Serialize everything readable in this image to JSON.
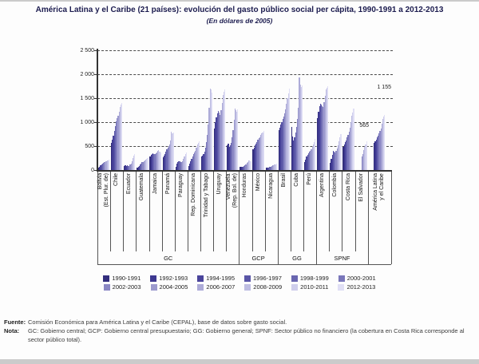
{
  "title": "América Latina y el Caribe (21 países): evolución del gasto público social per cápita, 1990-1991 a 2012-2013",
  "subtitle": "(En dólares de 2005)",
  "chart_data": {
    "type": "bar",
    "title": "América Latina y el Caribe (21 países): evolución del gasto público social per cápita, 1990-1991 a 2012-2013",
    "subtitle": "(En dólares de 2005)",
    "ylabel": "",
    "xlabel": "",
    "ylim": [
      0,
      2500
    ],
    "ytick_values": [
      0,
      500,
      1000,
      1500,
      2000,
      2500
    ],
    "ytick_labels": [
      "0",
      "500",
      "1 000",
      "1 500",
      "2 000",
      "2 500"
    ],
    "grid": "horizontal-dashed",
    "legend_position": "bottom",
    "series_labels": [
      "1990-1991",
      "1992-1993",
      "1994-1995",
      "1996-1997",
      "1998-1999",
      "2000-2001",
      "2002-2003",
      "2004-2005",
      "2006-2007",
      "2008-2009",
      "2010-2011",
      "2012-2013"
    ],
    "series_colors": [
      "#332e7d",
      "#3d3890",
      "#4a449b",
      "#5955a6",
      "#6966b0",
      "#7a77ba",
      "#8b88c4",
      "#9c9ace",
      "#adabd8",
      "#bebde2",
      "#cfceec",
      "#e0dff5"
    ],
    "groups": [
      {
        "country": "Bolivia\n(Est. Plur. de)",
        "sector": "GC",
        "values": [
          55,
          75,
          95,
          115,
          135,
          150,
          160,
          170,
          180,
          195,
          205,
          215
        ]
      },
      {
        "country": "Chile",
        "sector": "GC",
        "values": [
          560,
          640,
          720,
          820,
          920,
          1010,
          1080,
          1130,
          1220,
          1310,
          1360,
          1400
        ]
      },
      {
        "country": "Ecuador",
        "sector": "GC",
        "values": [
          90,
          95,
          90,
          95,
          90,
          85,
          110,
          135,
          185,
          250,
          295,
          330
        ]
      },
      {
        "country": "Guatemala",
        "sector": "GC",
        "values": [
          55,
          70,
          90,
          115,
          140,
          160,
          170,
          180,
          195,
          215,
          230,
          250
        ]
      },
      {
        "country": "Jamaica",
        "sector": "GC",
        "values": [
          290,
          310,
          330,
          350,
          340,
          330,
          350,
          370,
          400,
          420,
          390,
          370
        ]
      },
      {
        "country": "Panamá",
        "sector": "GC",
        "values": [
          260,
          300,
          340,
          390,
          430,
          470,
          500,
          540,
          620,
          800,
          760,
          780
        ]
      },
      {
        "country": "Paraguay",
        "sector": "GC",
        "values": [
          60,
          130,
          170,
          190,
          185,
          175,
          175,
          185,
          230,
          290,
          330,
          360
        ]
      },
      {
        "country": "Rep. Dominicana",
        "sector": "GC",
        "values": [
          90,
          140,
          190,
          240,
          290,
          340,
          360,
          400,
          460,
          530,
          560,
          600
        ]
      },
      {
        "country": "Trinidad y Tabago",
        "sector": "GC",
        "values": [
          280,
          300,
          330,
          390,
          470,
          580,
          730,
          950,
          1300,
          1700,
          1680,
          1620
        ]
      },
      {
        "country": "Uruguay",
        "sector": "GC",
        "values": [
          870,
          1000,
          1100,
          1180,
          1230,
          1200,
          1150,
          1250,
          1400,
          1570,
          1630,
          1680
        ]
      },
      {
        "country": "Venezuela\n(Rep. Bol. de)",
        "sector": "GC",
        "values": [
          520,
          550,
          480,
          510,
          560,
          690,
          830,
          1050,
          1280,
          1250,
          1220,
          1260
        ]
      },
      {
        "country": "Honduras",
        "sector": "GCP",
        "values": [
          60,
          65,
          70,
          75,
          85,
          100,
          120,
          145,
          175,
          200,
          195,
          190
        ]
      },
      {
        "country": "México",
        "sector": "GCP",
        "values": [
          430,
          470,
          520,
          550,
          590,
          630,
          660,
          690,
          730,
          760,
          790,
          820
        ]
      },
      {
        "country": "Nicaragua",
        "sector": "GCP",
        "values": [
          45,
          48,
          52,
          58,
          65,
          75,
          85,
          95,
          105,
          115,
          122,
          130
        ]
      },
      {
        "country": "Brasil",
        "sector": "GG",
        "values": [
          830,
          880,
          950,
          1000,
          1060,
          1120,
          1180,
          1270,
          1380,
          1500,
          1600,
          1700
        ]
      },
      {
        "country": "Cuba",
        "sector": "GG",
        "values": [
          900,
          700,
          620,
          690,
          780,
          900,
          1060,
          1300,
          1930,
          1780,
          1740,
          1760
        ]
      },
      {
        "country": "Perú",
        "sector": "GG",
        "values": [
          160,
          220,
          280,
          320,
          350,
          380,
          400,
          430,
          480,
          540,
          580,
          650
        ]
      },
      {
        "country": "Argentina",
        "sector": "SPNF",
        "values": [
          1080,
          1220,
          1330,
          1390,
          1370,
          1340,
          1310,
          1420,
          1550,
          1680,
          1720,
          1750
        ]
      },
      {
        "country": "Colombia",
        "sector": "SPNF",
        "values": [
          150,
          230,
          320,
          400,
          380,
          360,
          400,
          450,
          520,
          600,
          680,
          750
        ]
      },
      {
        "country": "Costa Rica",
        "sector": "SPNF",
        "values": [
          480,
          540,
          580,
          620,
          680,
          740,
          800,
          880,
          1000,
          1130,
          1200,
          1290
        ]
      },
      {
        "country": "El Salvador",
        "sector": "SPNF",
        "values": [
          0,
          0,
          0,
          0,
          0,
          0,
          280,
          340,
          410,
          480,
          540,
          600
        ]
      },
      {
        "country": "América Latina\ny el Caribe",
        "sector": "",
        "values": [
          565,
          600,
          640,
          680,
          720,
          770,
          810,
          870,
          960,
          1060,
          1110,
          1155
        ]
      }
    ],
    "sector_groups": [
      {
        "label": "GC",
        "from": 0,
        "to": 10
      },
      {
        "label": "GCP",
        "from": 11,
        "to": 13
      },
      {
        "label": "GG",
        "from": 14,
        "to": 16
      },
      {
        "label": "SPNF",
        "from": 17,
        "to": 20
      }
    ],
    "annotations": [
      {
        "text": "565",
        "target_group": "América Latina y el Caribe",
        "target_series": "1990-1991"
      },
      {
        "text": "1 155",
        "target_group": "América Latina y el Caribe",
        "target_series": "2012-2013"
      }
    ]
  },
  "footer": {
    "fuente_label": "Fuente:",
    "fuente_text": "Comisión Económica para América Latina y el Caribe (CEPAL), base de datos sobre gasto social.",
    "nota_label": "Nota:",
    "nota_text": "GC: Gobierno central; GCP: Gobierno central presupuestario; GG: Gobierno general; SPNF: Sector público no financiero (la cobertura en Costa Rica corresponde al sector público total)."
  }
}
